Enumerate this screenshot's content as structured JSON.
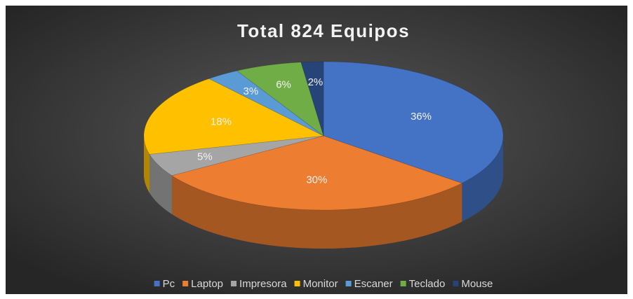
{
  "chart_data": {
    "type": "pie3d",
    "title": "Total 824 Equipos",
    "categories": [
      "Pc",
      "Laptop",
      "Impresora",
      "Monitor",
      "Escaner",
      "Teclado",
      "Mouse"
    ],
    "values": [
      36,
      30,
      5,
      18,
      3,
      6,
      2
    ],
    "value_labels": [
      "36%",
      "30%",
      "5%",
      "18%",
      "3%",
      "6%",
      "2%"
    ],
    "colors": [
      "#4472c4",
      "#ed7d31",
      "#a5a5a5",
      "#ffc000",
      "#5b9bd5",
      "#70ad47",
      "#264478"
    ],
    "legend": "bottom"
  }
}
